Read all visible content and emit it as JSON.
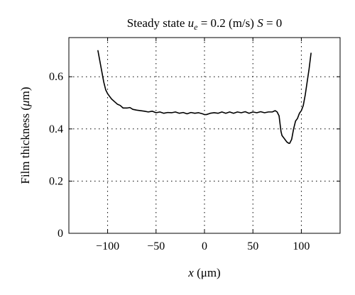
{
  "chart_data": {
    "type": "line",
    "title": {
      "prefix": "Steady state ",
      "u_symbol": "u",
      "u_subscript": "e",
      "middle": " = 0.2 (m/s) ",
      "s_symbol": "S",
      "suffix": " = 0"
    },
    "xlabel": {
      "symbol": "x",
      "units": " (μm)"
    },
    "ylabel": {
      "text": "Film thickness (",
      "mu": "μ",
      "units_end": "m)"
    },
    "xlim": [
      -140,
      140
    ],
    "ylim": [
      0,
      0.75
    ],
    "xticks": [
      -100,
      -50,
      0,
      50,
      100
    ],
    "xtick_labels": [
      "−100",
      "−50",
      "0",
      "50",
      "100"
    ],
    "yticks": [
      0,
      0.2,
      0.4,
      0.6
    ],
    "ytick_labels": [
      "0",
      "0.2",
      "0.4",
      "0.6"
    ],
    "grid": true,
    "series": [
      {
        "x": [
          -110,
          -107,
          -104,
          -102,
          -100,
          -98,
          -96,
          -93,
          -90,
          -87,
          -84,
          -80,
          -77,
          -74,
          -70,
          -66,
          -62,
          -58,
          -54,
          -50,
          -46,
          -42,
          -38,
          -34,
          -30,
          -26,
          -22,
          -18,
          -14,
          -10,
          -6,
          -2,
          0,
          2,
          6,
          10,
          14,
          18,
          22,
          26,
          30,
          34,
          38,
          42,
          46,
          50,
          54,
          58,
          62,
          66,
          70,
          73,
          75,
          77,
          78,
          79,
          80,
          81,
          82,
          83,
          85,
          87,
          88,
          90,
          92,
          94,
          96,
          98,
          100,
          102,
          104,
          106,
          108,
          110
        ],
        "y": [
          0.7,
          0.64,
          0.58,
          0.55,
          0.535,
          0.525,
          0.515,
          0.505,
          0.495,
          0.49,
          0.48,
          0.48,
          0.482,
          0.475,
          0.472,
          0.47,
          0.468,
          0.465,
          0.468,
          0.462,
          0.465,
          0.46,
          0.463,
          0.462,
          0.465,
          0.46,
          0.463,
          0.458,
          0.463,
          0.46,
          0.462,
          0.458,
          0.455,
          0.455,
          0.46,
          0.462,
          0.46,
          0.465,
          0.46,
          0.465,
          0.46,
          0.465,
          0.462,
          0.466,
          0.46,
          0.465,
          0.462,
          0.466,
          0.462,
          0.465,
          0.465,
          0.47,
          0.465,
          0.45,
          0.42,
          0.39,
          0.375,
          0.37,
          0.365,
          0.36,
          0.35,
          0.345,
          0.345,
          0.36,
          0.4,
          0.43,
          0.44,
          0.46,
          0.47,
          0.49,
          0.53,
          0.58,
          0.63,
          0.69
        ]
      }
    ]
  }
}
